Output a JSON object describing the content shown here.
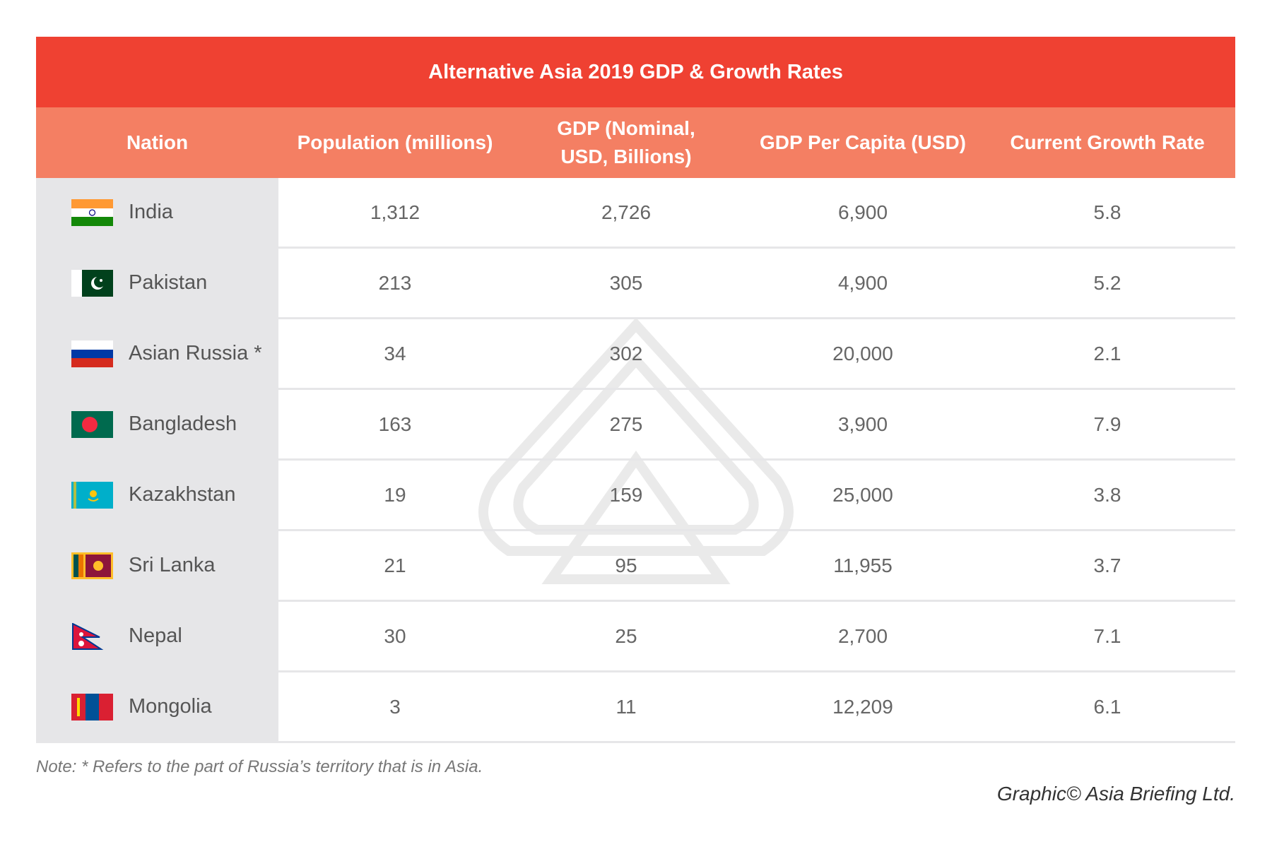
{
  "title": "Alternative Asia 2019 GDP & Growth Rates",
  "columns": [
    "Nation",
    "Population (millions)",
    "GDP  (Nominal, USD, Billions)",
    "GDP Per Capita (USD)",
    "Current Growth Rate"
  ],
  "rows": [
    {
      "nation": "India",
      "flag": "india-flag",
      "population": "1,312",
      "gdp": "2,726",
      "per_capita": "6,900",
      "growth": "5.8"
    },
    {
      "nation": "Pakistan",
      "flag": "pakistan-flag",
      "population": "213",
      "gdp": "305",
      "per_capita": "4,900",
      "growth": "5.2"
    },
    {
      "nation": "Asian Russia *",
      "flag": "russia-flag",
      "population": "34",
      "gdp": "302",
      "per_capita": "20,000",
      "growth": "2.1"
    },
    {
      "nation": "Bangladesh",
      "flag": "bangladesh-flag",
      "population": "163",
      "gdp": "275",
      "per_capita": "3,900",
      "growth": "7.9"
    },
    {
      "nation": "Kazakhstan",
      "flag": "kazakhstan-flag",
      "population": "19",
      "gdp": "159",
      "per_capita": "25,000",
      "growth": "3.8"
    },
    {
      "nation": "Sri Lanka",
      "flag": "sri-lanka-flag",
      "population": "21",
      "gdp": "95",
      "per_capita": "11,955",
      "growth": "3.7"
    },
    {
      "nation": "Nepal",
      "flag": "nepal-flag",
      "population": "30",
      "gdp": "25",
      "per_capita": "2,700",
      "growth": "7.1"
    },
    {
      "nation": "Mongolia",
      "flag": "mongolia-flag",
      "population": "3",
      "gdp": "11",
      "per_capita": "12,209",
      "growth": "6.1"
    }
  ],
  "note": "Note: * Refers to the part of Russia’s territory that is in Asia.",
  "credit": "Graphic© Asia Briefing Ltd.",
  "colors": {
    "title_bg": "#ef4132",
    "header_bg": "#f47f63",
    "nation_bg": "#e6e6e8"
  }
}
